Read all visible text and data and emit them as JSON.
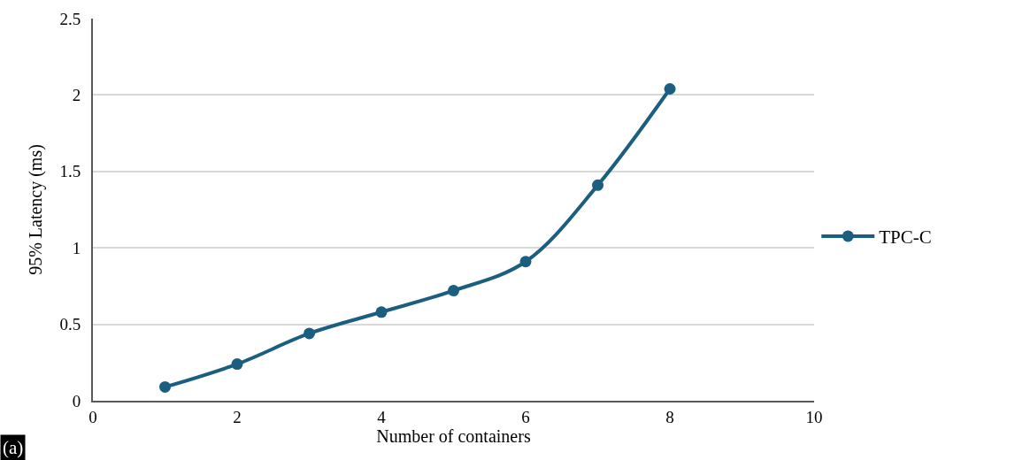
{
  "chart_data": {
    "type": "line",
    "xlabel": "Number of containers",
    "ylabel": "95% Latency (ms)",
    "x": [
      1,
      2,
      3,
      4,
      5,
      6,
      7,
      8
    ],
    "series": [
      {
        "name": "TPC-C",
        "color": "#1b5e80",
        "values": [
          0.09,
          0.24,
          0.44,
          0.58,
          0.72,
          0.91,
          1.41,
          2.04
        ]
      }
    ],
    "xlim": [
      0,
      10
    ],
    "xticks": [
      0,
      2,
      4,
      6,
      8,
      10
    ],
    "ylim": [
      0,
      2.5
    ],
    "yticks": [
      0,
      0.5,
      1,
      1.5,
      2,
      2.5
    ],
    "grid": "y",
    "legend": "right",
    "marker": "circle",
    "line_style": "solid",
    "annotations": [
      "(a)"
    ]
  }
}
